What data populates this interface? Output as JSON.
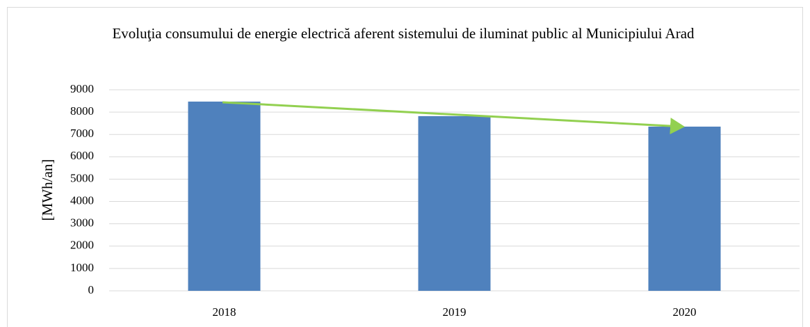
{
  "chart_data": {
    "type": "bar",
    "title": "Evoluţia consumului de energie electrică aferent sistemului de iluminat public al Municipiului Arad",
    "y_label": "[MWh/an]",
    "categories": [
      "2018",
      "2019",
      "2020"
    ],
    "values": [
      8470,
      7820,
      7350
    ],
    "color": "#4f81bd",
    "ylim": [
      0,
      9000
    ],
    "yticks": [
      0,
      1000,
      2000,
      3000,
      4000,
      5000,
      6000,
      7000,
      8000,
      9000
    ],
    "grid": true
  }
}
